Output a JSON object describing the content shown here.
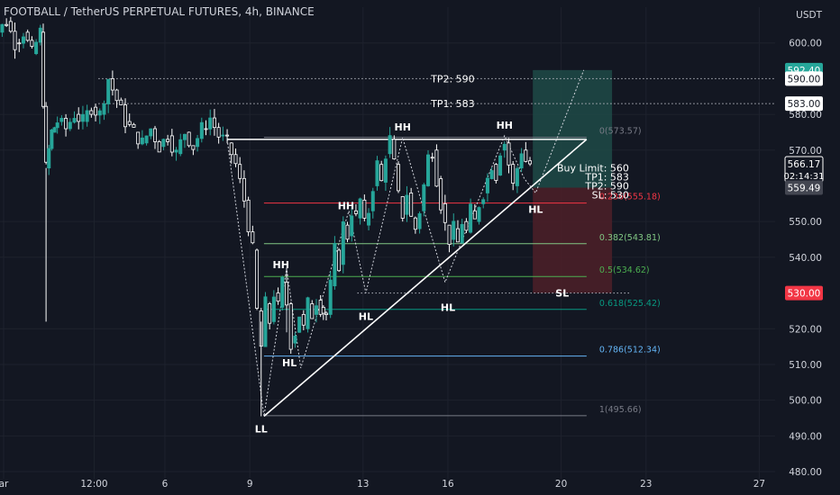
{
  "header": {
    "title": "FOOTBALL / TetherUS PERPETUAL FUTURES, 4h, BINANCE"
  },
  "price_axis": {
    "unit": "USDT",
    "ticks": [
      "600.00",
      "580.00",
      "570.00",
      "550.00",
      "540.00",
      "520.00",
      "510.00",
      "500.00",
      "490.00",
      "480.00"
    ],
    "tick_values": [
      600,
      580,
      570,
      550,
      540,
      520,
      510,
      500,
      490,
      480
    ],
    "badges": [
      {
        "label": "592.40",
        "value": 592.4,
        "kind": "green"
      },
      {
        "label": "590.00",
        "value": 590,
        "kind": "white"
      },
      {
        "label": "583.00",
        "value": 583,
        "kind": "white"
      },
      {
        "label": "566.17",
        "value": 566.17,
        "kind": "price"
      },
      {
        "label": "559.49",
        "value": 559.49,
        "kind": "grey"
      },
      {
        "label": "530.00",
        "value": 530,
        "kind": "red"
      }
    ],
    "countdown": "02:14:31"
  },
  "time_axis": {
    "labels": [
      {
        "text": "ar",
        "t": 0.8
      },
      {
        "text": "12:00",
        "t": 4
      },
      {
        "text": "6",
        "t": 6.5
      },
      {
        "text": "9",
        "t": 9.5
      },
      {
        "text": "13",
        "t": 13.5
      },
      {
        "text": "16",
        "t": 16.5
      },
      {
        "text": "20",
        "t": 20.5
      },
      {
        "text": "23",
        "t": 23.5
      },
      {
        "text": "27",
        "t": 27.5
      }
    ]
  },
  "levels": {
    "tp2": {
      "label": "TP2: 590",
      "value": 590
    },
    "tp1": {
      "label": "TP1: 583",
      "value": 583
    },
    "entry_block": [
      "Buy Limit: 560",
      "TP1: 583",
      "TP2: 590",
      "SL: 530"
    ],
    "sl_label": "SL"
  },
  "fib": [
    {
      "label": "0(573.57)",
      "value": 573.57,
      "color": "#787b86"
    },
    {
      "label": "0.236(555.18)",
      "value": 555.18,
      "color": "#f23645"
    },
    {
      "label": "0.382(543.81)",
      "value": 543.81,
      "color": "#81c784"
    },
    {
      "label": "0.5(534.62)",
      "value": 534.62,
      "color": "#4caf50"
    },
    {
      "label": "0.618(525.42)",
      "value": 525.42,
      "color": "#089981"
    },
    {
      "label": "0.786(512.34)",
      "value": 512.34,
      "color": "#64b5f6"
    },
    {
      "label": "1(495.66)",
      "value": 495.66,
      "color": "#787b86"
    }
  ],
  "pivots": [
    {
      "label": "HH",
      "t": 14.9,
      "v": 575.5
    },
    {
      "label": "HH",
      "t": 18.5,
      "v": 576
    },
    {
      "label": "HH",
      "t": 12.9,
      "v": 553.5
    },
    {
      "label": "HH",
      "t": 10.6,
      "v": 537
    },
    {
      "label": "HL",
      "t": 13.6,
      "v": 522.5
    },
    {
      "label": "HL",
      "t": 16.5,
      "v": 525
    },
    {
      "label": "HL",
      "t": 10.9,
      "v": 509.5
    },
    {
      "label": "HL",
      "t": 19.6,
      "v": 552.5
    },
    {
      "label": "LL",
      "t": 9.9,
      "v": 491
    }
  ],
  "colors": {
    "background": "#131722",
    "grid": "#1e222d",
    "up": "#26a69a",
    "down": "#ffffff",
    "text": "#d1d4dc",
    "profit_zone": "#1e4a46",
    "loss_zone": "#4a1f28",
    "price_badge": "#26a69a",
    "sl_badge": "#f23645"
  },
  "chart_data": {
    "type": "candlestick",
    "title": "FOOTBALL / TetherUS PERPETUAL FUTURES, 4h, BINANCE",
    "ylabel": "USDT",
    "ylim": [
      478,
      610
    ],
    "x_tick_labels": [
      "ar",
      "12:00",
      "6",
      "9",
      "13",
      "16",
      "20",
      "23",
      "27"
    ],
    "close_path": [
      [
        0.0,
        602
      ],
      [
        0.3,
        608
      ],
      [
        0.6,
        603
      ],
      [
        0.9,
        606
      ],
      [
        1.2,
        600
      ],
      [
        1.5,
        603
      ],
      [
        1.8,
        597
      ],
      [
        2.1,
        603
      ],
      [
        2.3,
        565
      ],
      [
        2.5,
        575
      ],
      [
        2.7,
        578
      ],
      [
        3.0,
        576
      ],
      [
        3.3,
        580
      ],
      [
        3.6,
        578
      ],
      [
        3.9,
        582
      ],
      [
        4.2,
        580
      ],
      [
        4.5,
        590
      ],
      [
        4.8,
        584
      ],
      [
        5.1,
        578
      ],
      [
        5.4,
        575
      ],
      [
        5.7,
        572
      ],
      [
        6.0,
        576
      ],
      [
        6.3,
        571
      ],
      [
        6.6,
        574
      ],
      [
        6.9,
        569
      ],
      [
        7.2,
        575
      ],
      [
        7.5,
        571
      ],
      [
        7.8,
        576
      ],
      [
        8.1,
        579
      ],
      [
        8.4,
        574
      ],
      [
        8.7,
        572
      ],
      [
        9.0,
        566
      ],
      [
        9.3,
        556
      ],
      [
        9.6,
        542
      ],
      [
        9.75,
        525
      ],
      [
        9.9,
        515
      ],
      [
        10.05,
        527
      ],
      [
        10.2,
        522
      ],
      [
        10.35,
        530
      ],
      [
        10.5,
        526
      ],
      [
        10.65,
        533
      ],
      [
        10.8,
        527
      ],
      [
        10.95,
        516
      ],
      [
        11.1,
        519
      ],
      [
        11.25,
        524
      ],
      [
        11.4,
        520
      ],
      [
        11.55,
        527
      ],
      [
        11.7,
        524
      ],
      [
        11.85,
        528
      ],
      [
        12.0,
        526
      ],
      [
        12.2,
        524
      ],
      [
        12.35,
        532
      ],
      [
        12.5,
        542
      ],
      [
        12.65,
        538
      ],
      [
        12.8,
        549
      ],
      [
        12.95,
        546
      ],
      [
        13.1,
        553
      ],
      [
        13.25,
        551
      ],
      [
        13.4,
        556
      ],
      [
        13.55,
        549
      ],
      [
        13.7,
        553
      ],
      [
        13.85,
        560
      ],
      [
        14.0,
        566
      ],
      [
        14.15,
        561
      ],
      [
        14.3,
        569
      ],
      [
        14.45,
        573
      ],
      [
        14.6,
        566
      ],
      [
        14.75,
        557
      ],
      [
        14.9,
        552
      ],
      [
        15.05,
        558
      ],
      [
        15.2,
        551
      ],
      [
        15.35,
        548
      ],
      [
        15.5,
        553
      ],
      [
        15.65,
        560
      ],
      [
        15.8,
        568
      ],
      [
        15.95,
        570
      ],
      [
        16.1,
        562
      ],
      [
        16.25,
        555
      ],
      [
        16.4,
        549
      ],
      [
        16.55,
        545
      ],
      [
        16.7,
        548
      ],
      [
        16.85,
        544
      ],
      [
        17.0,
        550
      ],
      [
        17.15,
        547
      ],
      [
        17.3,
        553
      ],
      [
        17.45,
        550
      ],
      [
        17.6,
        555
      ],
      [
        17.75,
        558
      ],
      [
        17.9,
        562
      ],
      [
        18.05,
        566
      ],
      [
        18.2,
        563
      ],
      [
        18.35,
        570
      ],
      [
        18.5,
        572
      ],
      [
        18.65,
        566
      ],
      [
        18.8,
        560
      ],
      [
        18.95,
        565
      ],
      [
        19.1,
        570
      ],
      [
        19.25,
        567
      ],
      [
        19.4,
        566.17
      ]
    ],
    "series": [
      {
        "name": "TP2",
        "values": [
          590
        ]
      },
      {
        "name": "TP1",
        "values": [
          583
        ]
      },
      {
        "name": "Buy Limit",
        "values": [
          560
        ]
      },
      {
        "name": "SL",
        "values": [
          530
        ]
      }
    ],
    "annotations": [
      "HH",
      "HH",
      "HH",
      "HH",
      "HL",
      "HL",
      "HL",
      "HL",
      "LL",
      "Buy Limit: 560",
      "TP1: 583",
      "TP2: 590",
      "SL: 530"
    ]
  }
}
